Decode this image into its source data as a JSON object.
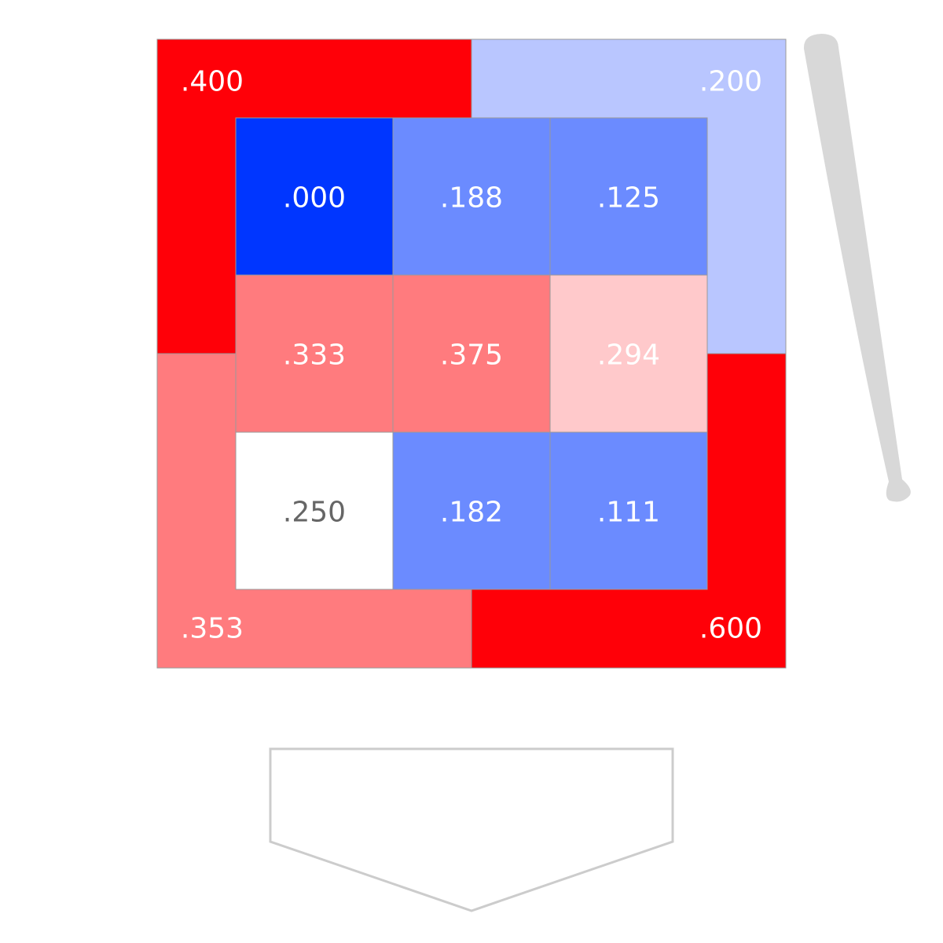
{
  "chart_data": {
    "type": "heatmap",
    "title": "",
    "outer_zones": [
      {
        "position": "top-left",
        "label": ".400",
        "value": 0.4,
        "color": "#ff0008",
        "text_color": "#ffffff"
      },
      {
        "position": "top-right",
        "label": ".200",
        "value": 0.2,
        "color": "#b9c6ff",
        "text_color": "#ffffff"
      },
      {
        "position": "bottom-left",
        "label": ".353",
        "value": 0.353,
        "color": "#ff7b7e",
        "text_color": "#ffffff"
      },
      {
        "position": "bottom-right",
        "label": ".600",
        "value": 0.6,
        "color": "#ff0008",
        "text_color": "#ffffff"
      }
    ],
    "inner_grid": [
      [
        {
          "label": ".000",
          "value": 0.0,
          "color": "#0036ff",
          "text_color": "#ffffff"
        },
        {
          "label": ".188",
          "value": 0.188,
          "color": "#6b8bff",
          "text_color": "#ffffff"
        },
        {
          "label": ".125",
          "value": 0.125,
          "color": "#6b8bff",
          "text_color": "#ffffff"
        }
      ],
      [
        {
          "label": ".333",
          "value": 0.333,
          "color": "#ff7b7e",
          "text_color": "#ffffff"
        },
        {
          "label": ".375",
          "value": 0.375,
          "color": "#ff7b7e",
          "text_color": "#ffffff"
        },
        {
          "label": ".294",
          "value": 0.294,
          "color": "#ffc9cb",
          "text_color": "#ffffff"
        }
      ],
      [
        {
          "label": ".250",
          "value": 0.25,
          "color": "#ffffff",
          "text_color": "#666666"
        },
        {
          "label": ".182",
          "value": 0.182,
          "color": "#6b8bff",
          "text_color": "#ffffff"
        },
        {
          "label": ".111",
          "value": 0.111,
          "color": "#6b8bff",
          "text_color": "#ffffff"
        }
      ]
    ],
    "decorations": {
      "bat_icon": "baseball-bat",
      "bat_color": "#d8d8d8",
      "plate_icon": "home-plate",
      "plate_stroke": "#cccccc",
      "cell_border": "#999999"
    }
  }
}
